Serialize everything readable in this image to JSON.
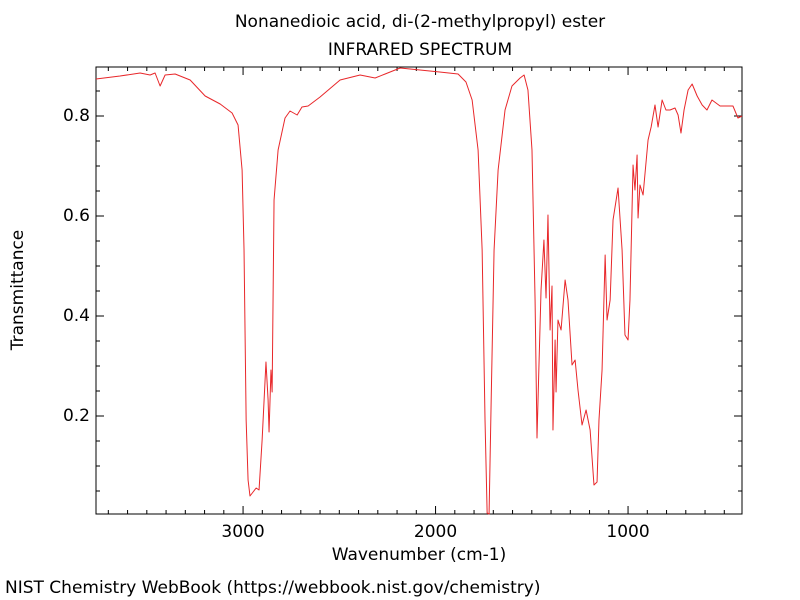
{
  "chart_data": {
    "type": "line",
    "title": "Nonanedioic acid, di-(2-methylpropyl) ester",
    "subtitle": "INFRARED SPECTRUM",
    "xlabel": "Wavenumber (cm-1)",
    "ylabel": "Transmittance",
    "source": "NIST Chemistry WebBook (https://webbook.nist.gov/chemistry)",
    "color": "#e8272a",
    "xlim": [
      3764,
      408
    ],
    "ylim": [
      0.004,
      0.898
    ],
    "xticks": [
      3000,
      2000,
      1000
    ],
    "yticks": [
      0.2,
      0.4,
      0.6,
      0.8
    ],
    "xminorticks": [
      3700,
      3600,
      3500,
      3400,
      3300,
      3200,
      3100,
      2900,
      2800,
      2700,
      2600,
      2500,
      2400,
      2300,
      2200,
      2100,
      1900,
      1800,
      1700,
      1600,
      1500,
      1400,
      1300,
      1200,
      1100,
      900,
      800,
      700,
      600,
      500
    ],
    "yminorticks": [
      0.05,
      0.1,
      0.15,
      0.25,
      0.3,
      0.35,
      0.45,
      0.5,
      0.55,
      0.65,
      0.7,
      0.75,
      0.85
    ],
    "x": [
      3764,
      3639,
      3535,
      3483,
      3457,
      3431,
      3405,
      3353,
      3275,
      3197,
      3119,
      3057,
      3026,
      3005,
      2995,
      2984,
      2974,
      2964,
      2948,
      2932,
      2917,
      2901,
      2881,
      2870,
      2865,
      2855,
      2849,
      2839,
      2818,
      2782,
      2756,
      2719,
      2694,
      2662,
      2600,
      2496,
      2392,
      2314,
      2262,
      2184,
      2081,
      1979,
      1883,
      1842,
      1810,
      1779,
      1758,
      1743,
      1732,
      1722,
      1711,
      1696,
      1675,
      1639,
      1603,
      1561,
      1540,
      1520,
      1499,
      1483,
      1473,
      1462,
      1452,
      1437,
      1426,
      1416,
      1405,
      1395,
      1390,
      1379,
      1374,
      1364,
      1348,
      1327,
      1312,
      1291,
      1275,
      1260,
      1239,
      1218,
      1197,
      1177,
      1161,
      1151,
      1135,
      1119,
      1109,
      1093,
      1078,
      1052,
      1031,
      1016,
      1000,
      990,
      974,
      964,
      953,
      948,
      938,
      922,
      896,
      880,
      860,
      844,
      823,
      803,
      782,
      756,
      740,
      725,
      709,
      688,
      667,
      641,
      615,
      590,
      564,
      522,
      455,
      429,
      408
    ],
    "values": [
      0.874,
      0.88,
      0.886,
      0.882,
      0.886,
      0.86,
      0.882,
      0.884,
      0.872,
      0.84,
      0.824,
      0.806,
      0.782,
      0.692,
      0.532,
      0.192,
      0.072,
      0.04,
      0.048,
      0.056,
      0.052,
      0.152,
      0.308,
      0.232,
      0.168,
      0.292,
      0.248,
      0.632,
      0.732,
      0.796,
      0.81,
      0.802,
      0.818,
      0.82,
      0.838,
      0.872,
      0.882,
      0.876,
      0.884,
      0.896,
      0.892,
      0.888,
      0.884,
      0.868,
      0.832,
      0.732,
      0.532,
      0.192,
      0.006,
      0.004,
      0.232,
      0.532,
      0.692,
      0.812,
      0.86,
      0.876,
      0.882,
      0.852,
      0.732,
      0.432,
      0.156,
      0.312,
      0.452,
      0.552,
      0.436,
      0.602,
      0.372,
      0.46,
      0.172,
      0.352,
      0.248,
      0.392,
      0.372,
      0.472,
      0.432,
      0.302,
      0.312,
      0.252,
      0.182,
      0.212,
      0.172,
      0.062,
      0.068,
      0.192,
      0.292,
      0.522,
      0.392,
      0.432,
      0.592,
      0.656,
      0.532,
      0.362,
      0.352,
      0.432,
      0.702,
      0.652,
      0.722,
      0.596,
      0.662,
      0.642,
      0.752,
      0.778,
      0.822,
      0.778,
      0.832,
      0.812,
      0.812,
      0.816,
      0.802,
      0.766,
      0.812,
      0.852,
      0.864,
      0.84,
      0.822,
      0.812,
      0.832,
      0.82,
      0.82,
      0.796,
      0.8
    ]
  }
}
